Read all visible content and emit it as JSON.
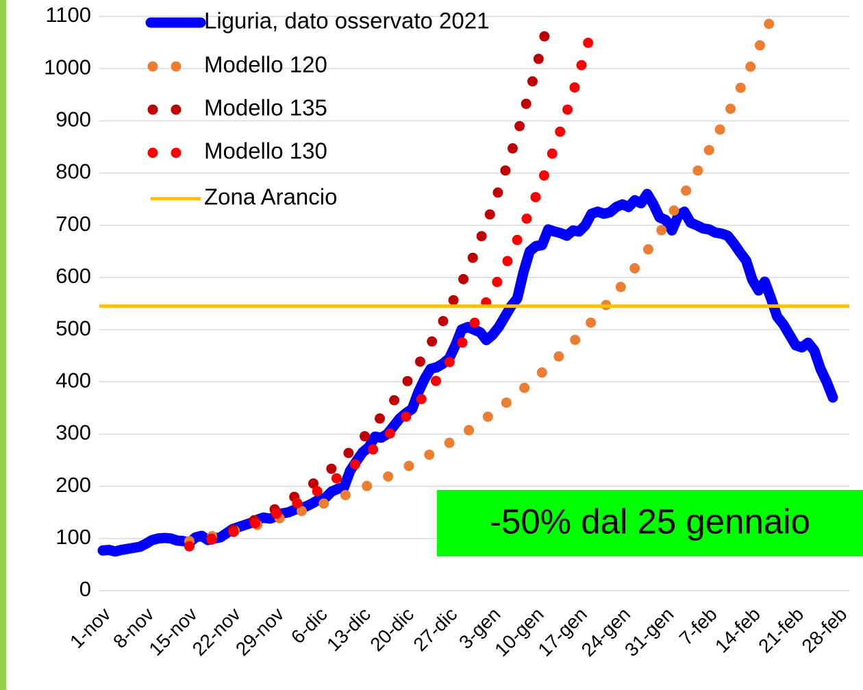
{
  "chart_data": {
    "type": "line",
    "legend": "top-left",
    "grid": true,
    "ylim": [
      0,
      1100
    ],
    "yticks": [
      0,
      100,
      200,
      300,
      400,
      500,
      600,
      700,
      800,
      900,
      1000,
      1100
    ],
    "categories": [
      "1-nov",
      null,
      null,
      null,
      null,
      null,
      null,
      "8-nov",
      null,
      null,
      null,
      null,
      null,
      null,
      "15-nov",
      null,
      null,
      null,
      null,
      null,
      null,
      "22-nov",
      null,
      null,
      null,
      null,
      null,
      null,
      "29-nov",
      null,
      null,
      null,
      null,
      null,
      null,
      "6-dic",
      null,
      null,
      null,
      null,
      null,
      null,
      "13-dic",
      null,
      null,
      null,
      null,
      null,
      null,
      "20-dic",
      null,
      null,
      null,
      null,
      null,
      null,
      "27-dic",
      null,
      null,
      null,
      null,
      null,
      null,
      "3-gen",
      null,
      null,
      null,
      null,
      null,
      null,
      "10-gen",
      null,
      null,
      null,
      null,
      null,
      null,
      "17-gen",
      null,
      null,
      null,
      null,
      null,
      null,
      "24-gen",
      null,
      null,
      null,
      null,
      null,
      null,
      "31-gen",
      null,
      null,
      null,
      null,
      null,
      null,
      "7-feb",
      null,
      null,
      null,
      null,
      null,
      null,
      "14-feb",
      null,
      null,
      null,
      null,
      null,
      null,
      "21-feb",
      null,
      null,
      null,
      null,
      null,
      null,
      "28-feb"
    ],
    "series": [
      {
        "name": "Liguria, dato osservato 2021",
        "color": "#0000ff",
        "style": "solid",
        "values": [
          77,
          78,
          75,
          78,
          80,
          82,
          84,
          90,
          97,
          100,
          101,
          100,
          96,
          95,
          92,
          102,
          105,
          97,
          100,
          102,
          110,
          118,
          122,
          126,
          130,
          136,
          140,
          138,
          142,
          148,
          150,
          155,
          158,
          162,
          168,
          175,
          178,
          190,
          195,
          198,
          230,
          248,
          265,
          275,
          295,
          293,
          300,
          315,
          330,
          340,
          348,
          380,
          405,
          425,
          428,
          435,
          445,
          470,
          500,
          505,
          500,
          495,
          480,
          490,
          505,
          525,
          545,
          560,
          610,
          650,
          660,
          662,
          692,
          688,
          685,
          680,
          690,
          688,
          700,
          722,
          726,
          722,
          725,
          735,
          740,
          735,
          748,
          742,
          760,
          740,
          715,
          710,
          690,
          718,
          726,
          705,
          700,
          694,
          692,
          686,
          684,
          680,
          665,
          648,
          632,
          595,
          575,
          592,
          560,
          525,
          510,
          490,
          470,
          466,
          475,
          460,
          425,
          400,
          370,
          null
        ]
      },
      {
        "name": "Modello 120",
        "color": "#ed7d31",
        "style": "dotted",
        "values": [
          null,
          null,
          null,
          null,
          null,
          null,
          null,
          null,
          null,
          null,
          null,
          null,
          null,
          null,
          95,
          98,
          100,
          103,
          105,
          108,
          111,
          114,
          117,
          120,
          123,
          126,
          130,
          133,
          137,
          140,
          144,
          148,
          152,
          156,
          160,
          164,
          168,
          173,
          177,
          182,
          187,
          192,
          197,
          202,
          207,
          213,
          218,
          224,
          230,
          236,
          242,
          249,
          255,
          262,
          269,
          276,
          283,
          291,
          298,
          306,
          314,
          322,
          331,
          340,
          349,
          358,
          367,
          377,
          387,
          397,
          407,
          418,
          429,
          441,
          452,
          464,
          476,
          489,
          502,
          515,
          528,
          542,
          557,
          571,
          586,
          602,
          618,
          634,
          651,
          668,
          685,
          703,
          722,
          741,
          761,
          781,
          801,
          822,
          844,
          866,
          889,
          912,
          936,
          961,
          986,
          1012,
          1039,
          1066,
          1095,
          null,
          null,
          null,
          null,
          null,
          null,
          null,
          null,
          null,
          null,
          null
        ]
      },
      {
        "name": "Modello 135",
        "color": "#c00000",
        "style": "dotted",
        "values": [
          null,
          null,
          null,
          null,
          null,
          null,
          null,
          null,
          null,
          null,
          null,
          null,
          null,
          null,
          85,
          89,
          93,
          97,
          101,
          106,
          111,
          116,
          121,
          126,
          132,
          138,
          144,
          151,
          157,
          164,
          172,
          180,
          188,
          196,
          205,
          214,
          224,
          234,
          244,
          255,
          267,
          279,
          291,
          305,
          318,
          333,
          347,
          363,
          379,
          397,
          414,
          433,
          452,
          473,
          494,
          516,
          540,
          564,
          589,
          616,
          643,
          672,
          703,
          734,
          767,
          802,
          838,
          875,
          915,
          956,
          999,
          1044,
          1091,
          null,
          null,
          null,
          null,
          null,
          null,
          null,
          null,
          null,
          null,
          null,
          null,
          null,
          null,
          null,
          null,
          null,
          null,
          null,
          null,
          null,
          null,
          null,
          null,
          null,
          null,
          null,
          null,
          null,
          null,
          null,
          null,
          null,
          null,
          null,
          null,
          null,
          null,
          null,
          null,
          null,
          null,
          null,
          null,
          null,
          null,
          null
        ]
      },
      {
        "name": "Modello 130",
        "color": "#ff0000",
        "style": "dotted",
        "values": [
          null,
          null,
          null,
          null,
          null,
          null,
          null,
          null,
          null,
          null,
          null,
          null,
          null,
          null,
          85,
          88,
          92,
          96,
          99,
          103,
          107,
          112,
          116,
          121,
          126,
          131,
          136,
          141,
          147,
          153,
          159,
          165,
          172,
          178,
          185,
          193,
          200,
          208,
          217,
          225,
          234,
          244,
          253,
          263,
          274,
          285,
          296,
          308,
          320,
          333,
          346,
          360,
          374,
          389,
          404,
          421,
          437,
          455,
          473,
          492,
          511,
          531,
          553,
          575,
          597,
          621,
          646,
          672,
          698,
          726,
          755,
          785,
          816,
          849,
          882,
          917,
          954,
          992,
          1031,
          1072,
          null,
          null,
          null,
          null,
          null,
          null,
          null,
          null,
          null,
          null,
          null,
          null,
          null,
          null,
          null,
          null,
          null,
          null,
          null,
          null,
          null,
          null,
          null,
          null,
          null,
          null,
          null,
          null,
          null,
          null,
          null,
          null,
          null,
          null,
          null,
          null,
          null,
          null,
          null,
          null
        ]
      },
      {
        "name": "Zona Arancio",
        "color": "#ffc000",
        "style": "hline",
        "value": 545
      }
    ],
    "annotation": {
      "text": "-50% dal 25 gennaio",
      "color": "#00ff00"
    }
  }
}
